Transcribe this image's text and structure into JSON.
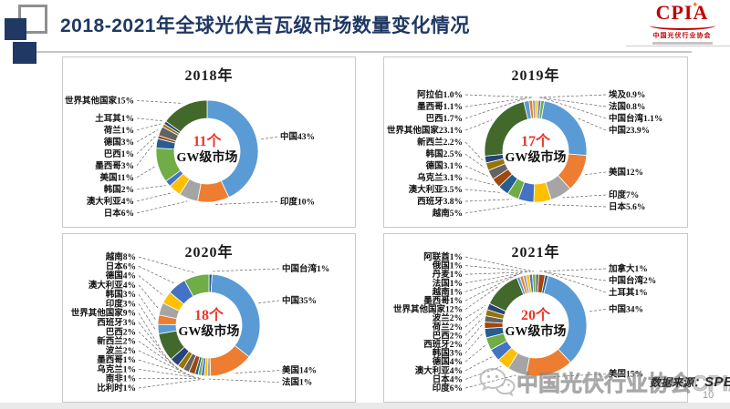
{
  "slide": {
    "title": "2018-2021年全球光伏吉瓦级市场数量变化情况",
    "page_number": "10",
    "source_prefix": "数据来源：",
    "source_name": "SPE",
    "watermark": "中国光伏行业协会CPIA",
    "logo": {
      "text": "CPIA",
      "subtext": "中国光伏行业协会"
    },
    "colors": {
      "accent_navy": "#1F3864",
      "highlight_red": "#E8372C",
      "logo_red": "#C00000"
    }
  },
  "chart_data": [
    {
      "type": "pie",
      "subtype": "donut",
      "title": "2018年",
      "center_count": "11个",
      "center_label": "GW级市场",
      "legend_position": "none",
      "slices": [
        {
          "name": "中国",
          "value": 43,
          "label": "中国43%",
          "color": "#5B9BD5"
        },
        {
          "name": "印度",
          "value": 10,
          "label": "印度10%",
          "color": "#ED7D31"
        },
        {
          "name": "日本",
          "value": 6,
          "label": "日本6%",
          "color": "#A5A5A5"
        },
        {
          "name": "澳大利亚",
          "value": 4,
          "label": "澳大利亚4%",
          "color": "#FFC000"
        },
        {
          "name": "韩国",
          "value": 2,
          "label": "韩国2%",
          "color": "#4472C4"
        },
        {
          "name": "美国",
          "value": 11,
          "label": "美国11%",
          "color": "#70AD47"
        },
        {
          "name": "墨西哥",
          "value": 3,
          "label": "墨西哥3%",
          "color": "#255E91"
        },
        {
          "name": "巴西",
          "value": 1,
          "label": "巴西1%",
          "color": "#9E480E"
        },
        {
          "name": "德国",
          "value": 3,
          "label": "德国3%",
          "color": "#636363"
        },
        {
          "name": "荷兰",
          "value": 1,
          "label": "荷兰1%",
          "color": "#997300"
        },
        {
          "name": "土耳其",
          "value": 1,
          "label": "土耳其1%",
          "color": "#264478"
        },
        {
          "name": "世界其他国家",
          "value": 15,
          "label": "世界其他国家15%",
          "color": "#43682B"
        }
      ]
    },
    {
      "type": "pie",
      "subtype": "donut",
      "title": "2019年",
      "center_count": "17个",
      "center_label": "GW级市场",
      "legend_position": "none",
      "slices": [
        {
          "name": "埃及",
          "value": 0.9,
          "label": "埃及0.9%",
          "color": "#FFC000"
        },
        {
          "name": "法国",
          "value": 0.8,
          "label": "法国0.8%",
          "color": "#4472C4"
        },
        {
          "name": "中国台湾",
          "value": 1.1,
          "label": "中国台湾1.1%",
          "color": "#70AD47"
        },
        {
          "name": "中国",
          "value": 23.9,
          "label": "中国23.9%",
          "color": "#5B9BD5"
        },
        {
          "name": "美国",
          "value": 12,
          "label": "美国12%",
          "color": "#ED7D31"
        },
        {
          "name": "印度",
          "value": 7,
          "label": "印度7%",
          "color": "#A5A5A5"
        },
        {
          "name": "日本",
          "value": 5.6,
          "label": "日本5.6%",
          "color": "#FFC000"
        },
        {
          "name": "越南",
          "value": 5,
          "label": "越南5%",
          "color": "#4472C4"
        },
        {
          "name": "西班牙",
          "value": 3.8,
          "label": "西班牙3.8%",
          "color": "#70AD47"
        },
        {
          "name": "澳大利亚",
          "value": 3.5,
          "label": "澳大利亚3.5%",
          "color": "#255E91"
        },
        {
          "name": "乌克兰",
          "value": 3.1,
          "label": "乌克兰3.1%",
          "color": "#9E480E"
        },
        {
          "name": "德国",
          "value": 3.1,
          "label": "德国3.1%",
          "color": "#636363"
        },
        {
          "name": "韩国",
          "value": 2.5,
          "label": "韩国2.5%",
          "color": "#997300"
        },
        {
          "name": "新西兰",
          "value": 2.2,
          "label": "新西兰2.2%",
          "color": "#264478"
        },
        {
          "name": "世界其他国家",
          "value": 23.1,
          "label": "世界其他国家23.1%",
          "color": "#43682B"
        },
        {
          "name": "巴西",
          "value": 1.7,
          "label": "巴西1.7%",
          "color": "#5B9BD5"
        },
        {
          "name": "墨西哥",
          "value": 1.1,
          "label": "墨西哥1.1%",
          "color": "#ED7D31"
        },
        {
          "name": "阿拉伯",
          "value": 1.0,
          "label": "阿拉伯1.0%",
          "color": "#A5A5A5"
        }
      ]
    },
    {
      "type": "pie",
      "subtype": "donut",
      "title": "2020年",
      "center_count": "18个",
      "center_label": "GW级市场",
      "legend_position": "none",
      "slices": [
        {
          "name": "中国台湾",
          "value": 1,
          "label": "中国台湾1%",
          "color": "#255E91"
        },
        {
          "name": "中国",
          "value": 35,
          "label": "中国35%",
          "color": "#5B9BD5"
        },
        {
          "name": "美国",
          "value": 14,
          "label": "美国14%",
          "color": "#ED7D31"
        },
        {
          "name": "法国",
          "value": 1,
          "label": "法国1%",
          "color": "#A5A5A5"
        },
        {
          "name": "比利时",
          "value": 1,
          "label": "比利时1%",
          "color": "#FFC000"
        },
        {
          "name": "南非",
          "value": 1,
          "label": "南非1%",
          "color": "#4472C4"
        },
        {
          "name": "乌克兰",
          "value": 1,
          "label": "乌克兰1%",
          "color": "#70AD47"
        },
        {
          "name": "墨西哥",
          "value": 1,
          "label": "墨西哥1%",
          "color": "#255E91"
        },
        {
          "name": "波兰",
          "value": 2,
          "label": "波兰2%",
          "color": "#9E480E"
        },
        {
          "name": "新西兰",
          "value": 2,
          "label": "新西兰2%",
          "color": "#636363"
        },
        {
          "name": "巴西",
          "value": 2,
          "label": "巴西2%",
          "color": "#997300"
        },
        {
          "name": "西班牙",
          "value": 3,
          "label": "西班牙3%",
          "color": "#264478"
        },
        {
          "name": "世界其他国家",
          "value": 9,
          "label": "世界其他国家9%",
          "color": "#43682B"
        },
        {
          "name": "印度",
          "value": 3,
          "label": "印度3%",
          "color": "#5B9BD5"
        },
        {
          "name": "韩国",
          "value": 3,
          "label": "韩国3%",
          "color": "#ED7D31"
        },
        {
          "name": "澳大利亚",
          "value": 4,
          "label": "澳大利亚4%",
          "color": "#A5A5A5"
        },
        {
          "name": "德国",
          "value": 4,
          "label": "德国4%",
          "color": "#FFC000"
        },
        {
          "name": "日本",
          "value": 6,
          "label": "日本6%",
          "color": "#4472C4"
        },
        {
          "name": "越南",
          "value": 8,
          "label": "越南8%",
          "color": "#70AD47"
        }
      ]
    },
    {
      "type": "pie",
      "subtype": "donut",
      "title": "2021年",
      "center_count": "20个",
      "center_label": "GW级市场",
      "legend_position": "none",
      "slices": [
        {
          "name": "加拿大",
          "value": 1,
          "label": "加拿大1%",
          "color": "#636363"
        },
        {
          "name": "中国台湾",
          "value": 2,
          "label": "中国台湾2%",
          "color": "#9E480E"
        },
        {
          "name": "土耳其",
          "value": 1,
          "label": "土耳其1%",
          "color": "#255E91"
        },
        {
          "name": "中国",
          "value": 34,
          "label": "中国34%",
          "color": "#5B9BD5"
        },
        {
          "name": "美国",
          "value": 15,
          "label": "美国15%",
          "color": "#ED7D31"
        },
        {
          "name": "印度",
          "value": 6,
          "label": "印度6%",
          "color": "#A5A5A5"
        },
        {
          "name": "日本",
          "value": 4,
          "label": "日本4%",
          "color": "#FFC000"
        },
        {
          "name": "澳大利亚",
          "value": 4,
          "label": "澳大利亚4%",
          "color": "#4472C4"
        },
        {
          "name": "德国",
          "value": 4,
          "label": "德国4%",
          "color": "#70AD47"
        },
        {
          "name": "韩国",
          "value": 3,
          "label": "韩国3%",
          "color": "#255E91"
        },
        {
          "name": "西班牙",
          "value": 2,
          "label": "西班牙2%",
          "color": "#9E480E"
        },
        {
          "name": "巴西",
          "value": 2,
          "label": "巴西2%",
          "color": "#636363"
        },
        {
          "name": "荷兰",
          "value": 2,
          "label": "荷兰2%",
          "color": "#997300"
        },
        {
          "name": "波兰",
          "value": 2,
          "label": "波兰2%",
          "color": "#264478"
        },
        {
          "name": "世界其他国家",
          "value": 12,
          "label": "世界其他国家12%",
          "color": "#43682B"
        },
        {
          "name": "墨西哥",
          "value": 1,
          "label": "墨西哥1%",
          "color": "#5B9BD5"
        },
        {
          "name": "越南",
          "value": 1,
          "label": "越南1%",
          "color": "#ED7D31"
        },
        {
          "name": "法国",
          "value": 1,
          "label": "法国1%",
          "color": "#A5A5A5"
        },
        {
          "name": "丹麦",
          "value": 1,
          "label": "丹麦1%",
          "color": "#FFC000"
        },
        {
          "name": "俄国",
          "value": 1,
          "label": "俄国1%",
          "color": "#4472C4"
        },
        {
          "name": "阿联酋",
          "value": 1,
          "label": "阿联酋1%",
          "color": "#70AD47"
        }
      ]
    }
  ]
}
